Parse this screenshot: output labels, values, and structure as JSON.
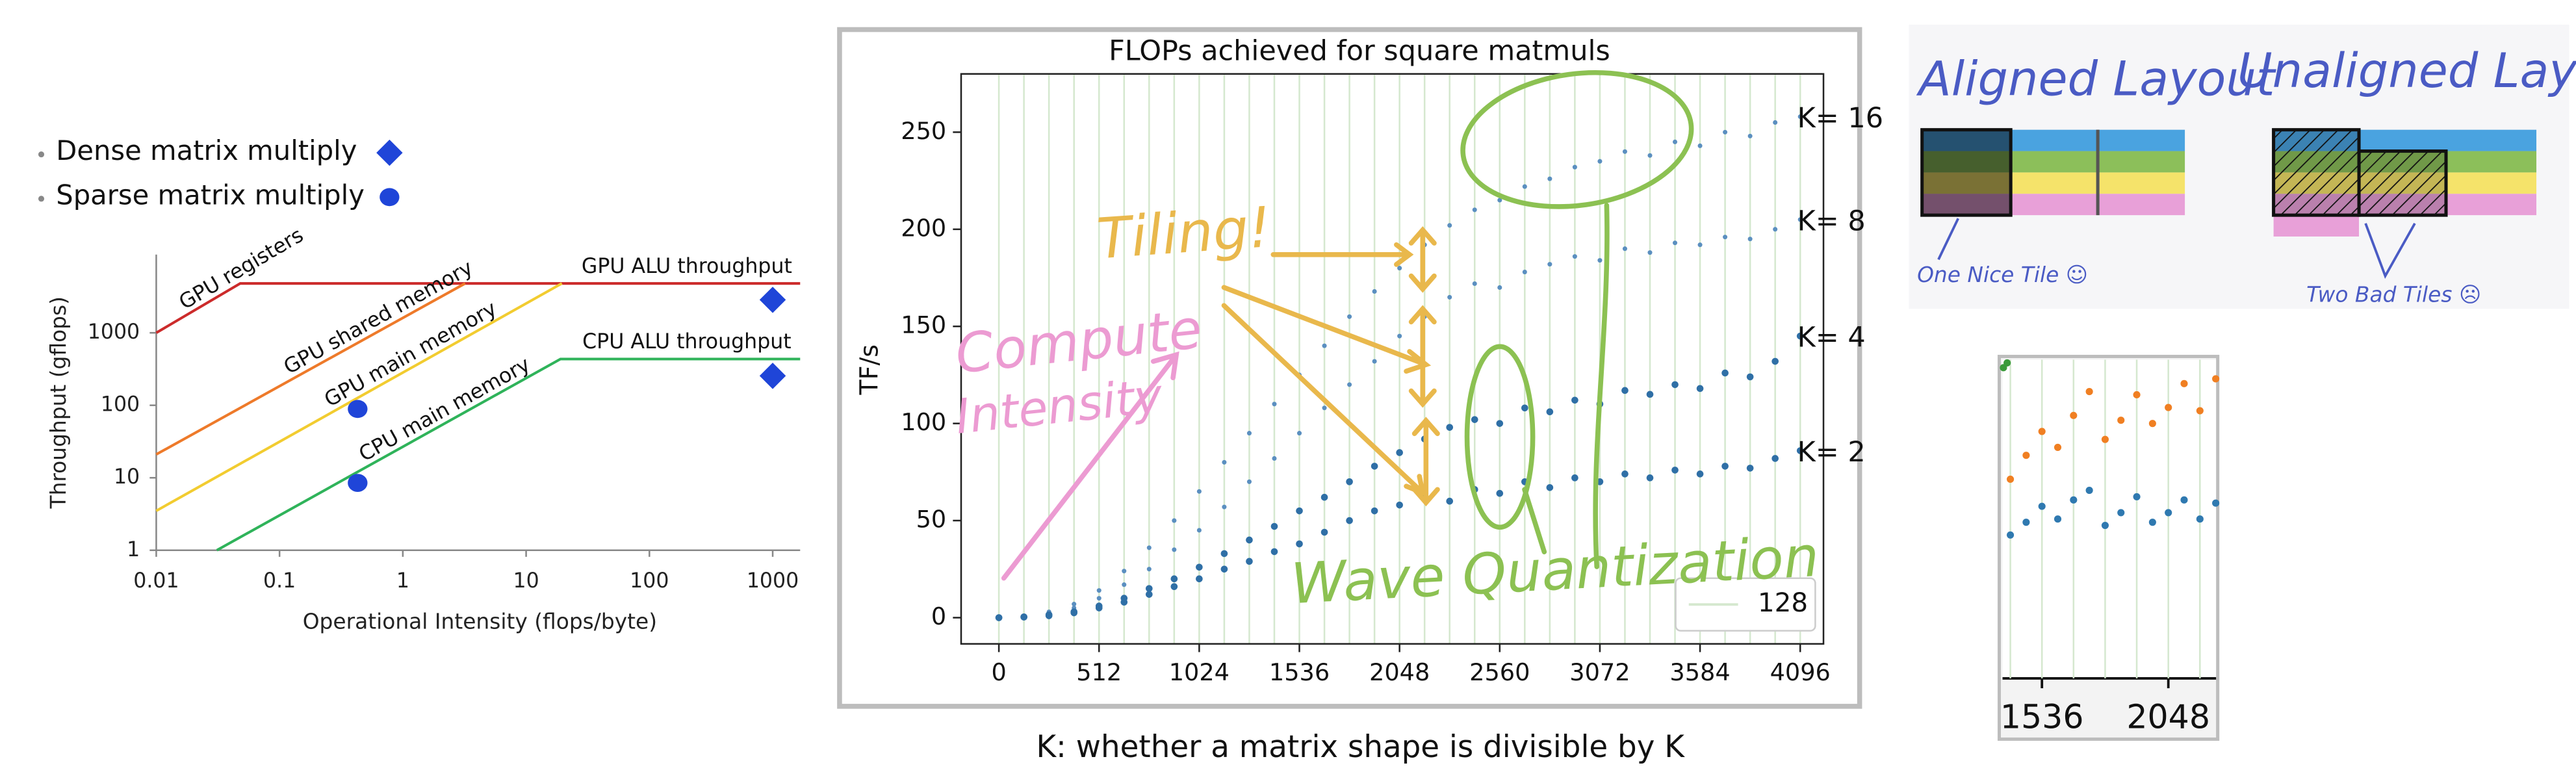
{
  "chart_data": [
    {
      "type": "line",
      "xlog": true,
      "ylog": true,
      "xlabel": "Operational Intensity (flops/byte)",
      "ylabel": "Throughput (gflops)",
      "xlim": [
        0.01,
        1670
      ],
      "ylim": [
        1,
        12000
      ],
      "xticks": [
        0.01,
        0.1,
        1,
        10,
        100,
        1000
      ],
      "yticks": [
        1,
        10,
        100,
        1000
      ],
      "series": [
        {
          "name": "GPU registers",
          "color": "#cc2b2b",
          "x": [
            0.01,
            0.048,
            1670
          ],
          "values": [
            1000,
            4800,
            4800
          ]
        },
        {
          "name": "GPU shared memory",
          "color": "#ee7a2a",
          "x": [
            0.01,
            3.2
          ],
          "values": [
            21,
            4800
          ]
        },
        {
          "name": "GPU main memory",
          "color": "#f2cc30",
          "x": [
            0.01,
            19.5
          ],
          "values": [
            3.5,
            4800
          ]
        },
        {
          "name": "CPU main memory",
          "color": "#2fb35a",
          "x": [
            0.031,
            19,
            1670
          ],
          "values": [
            1,
            435,
            435
          ]
        },
        {
          "name": "Dense matrix multiply",
          "marker": "diamond",
          "color": "#1f45d8",
          "x": [
            1000,
            1000
          ],
          "values": [
            2850,
            255
          ]
        },
        {
          "name": "Sparse matrix multiply",
          "marker": "circle",
          "color": "#1f45d8",
          "x": [
            0.43,
            0.43
          ],
          "values": [
            89,
            8.5
          ]
        }
      ],
      "annotations": [
        "GPU ALU throughput",
        "CPU ALU throughput"
      ]
    },
    {
      "type": "scatter",
      "title": "FLOPs achieved for square matmuls",
      "ylabel": "TF/s",
      "xlim": [
        -193,
        4215
      ],
      "ylim": [
        -13.5,
        280
      ],
      "xticks": [
        0,
        512,
        1024,
        1536,
        2048,
        2560,
        3072,
        3584,
        4096
      ],
      "yticks": [
        0,
        50,
        100,
        150,
        200,
        250
      ],
      "xgrid": [
        0,
        128,
        256,
        384,
        512,
        640,
        768,
        896,
        1024,
        1152,
        1280,
        1408,
        1536,
        1664,
        1792,
        1920,
        2048,
        2176,
        2304,
        2432,
        2560,
        2688,
        2816,
        2944,
        3072,
        3200,
        3328,
        3456,
        3584,
        3712,
        3840,
        3968,
        4096
      ],
      "legend": "128",
      "x": [
        0,
        128,
        256,
        384,
        512,
        640,
        768,
        896,
        1024,
        1152,
        1280,
        1408,
        1536,
        1664,
        1792,
        1920,
        2048,
        2176,
        2304,
        2432,
        2560,
        2688,
        2816,
        2944,
        3072,
        3200,
        3328,
        3456,
        3584,
        3712,
        3840,
        3968,
        4096
      ],
      "series": [
        {
          "name": "K= 16",
          "color": "#5b8fc0",
          "values": [
            0,
            0.6,
            3,
            7,
            14,
            24,
            36,
            50,
            65,
            80,
            95,
            110,
            125,
            140,
            155,
            168,
            180,
            192,
            202,
            210,
            215,
            222,
            226,
            232,
            235,
            240,
            238,
            245,
            243,
            250,
            248,
            255,
            258
          ]
        },
        {
          "name": "K= 8",
          "color": "#5b8fc0",
          "values": [
            0,
            0.5,
            2,
            5,
            10,
            17,
            25,
            35,
            45,
            57,
            70,
            82,
            95,
            108,
            120,
            132,
            145,
            155,
            165,
            172,
            170,
            178,
            182,
            186,
            184,
            190,
            188,
            193,
            192,
            196,
            195,
            200,
            205
          ]
        },
        {
          "name": "K= 4",
          "color": "#2f6fa6",
          "values": [
            0,
            0.4,
            1.5,
            3,
            6,
            10,
            15,
            20,
            26,
            33,
            40,
            47,
            55,
            62,
            70,
            78,
            85,
            92,
            98,
            102,
            100,
            108,
            106,
            112,
            110,
            117,
            115,
            120,
            118,
            126,
            124,
            132,
            145
          ]
        },
        {
          "name": "K= 2",
          "color": "#2f6fa6",
          "values": [
            0,
            0.3,
            1,
            2.5,
            5,
            8,
            12,
            16,
            20,
            25,
            29,
            34,
            38,
            44,
            50,
            55,
            58,
            62,
            60,
            66,
            64,
            70,
            67,
            72,
            70,
            74,
            72,
            76,
            74,
            78,
            77,
            82,
            86
          ]
        }
      ],
      "annotations": [
        "Tiling!",
        "Compute",
        "Intensity",
        "Wave Quantization"
      ],
      "caption": "K: whether a matrix shape is divisible by K"
    },
    {
      "type": "scatter",
      "xlim": [
        1363,
        2248
      ],
      "ylim": [
        0,
        200
      ],
      "xticks": [
        1536,
        2048
      ],
      "xgrid": [
        1408,
        1536,
        1664,
        1792,
        1920,
        2048,
        2176
      ],
      "series": [
        {
          "color": "#3a9a3a",
          "x": [
            1380,
            1395
          ],
          "values": [
            195,
            198
          ]
        },
        {
          "color": "#f07f22",
          "x": [
            1408,
            1472,
            1536,
            1600,
            1664,
            1728,
            1792,
            1856,
            1920,
            1984,
            2048,
            2112,
            2176,
            2240
          ],
          "values": [
            125,
            140,
            155,
            145,
            165,
            180,
            150,
            162,
            178,
            160,
            170,
            185,
            168,
            188
          ]
        },
        {
          "color": "#2f79b0",
          "x": [
            1408,
            1472,
            1536,
            1600,
            1664,
            1728,
            1792,
            1856,
            1920,
            1984,
            2048,
            2112,
            2176,
            2240
          ],
          "values": [
            90,
            98,
            108,
            100,
            112,
            118,
            96,
            104,
            114,
            98,
            104,
            112,
            100,
            110
          ]
        }
      ]
    }
  ],
  "diagram": {
    "aligned_title": "Aligned Layout",
    "unaligned_title": "Unaligned Layout",
    "aligned_note": "One Nice Tile ☺",
    "unaligned_note": "Two Bad Tiles ☹"
  }
}
